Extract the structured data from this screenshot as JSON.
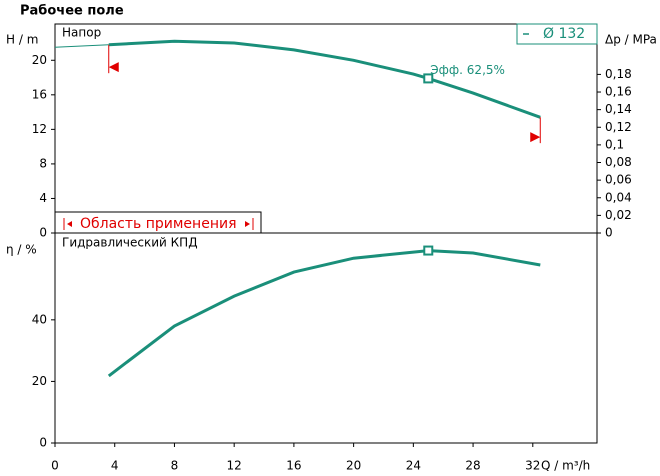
{
  "chart_data": [
    {
      "type": "line",
      "title": "Рабочее поле",
      "panel_label": "Напор",
      "y_label": "H / m",
      "y2_label": "Δp / MPa",
      "xlim": [
        0,
        36.3
      ],
      "ylim": [
        0,
        24.2
      ],
      "yticks": [
        0,
        4,
        8,
        12,
        16,
        20
      ],
      "y2lim": [
        0,
        0.2372
      ],
      "y2ticks": [
        0,
        {
          "value": 0.02,
          "label": "0,02"
        },
        {
          "value": 0.04,
          "label": "0,04"
        },
        {
          "value": 0.06,
          "label": "0,06"
        },
        {
          "value": 0.08,
          "label": "0,08"
        },
        {
          "value": 0.1,
          "label": "0,1"
        },
        {
          "value": 0.12,
          "label": "0,12"
        },
        {
          "value": 0.14,
          "label": "0,14"
        },
        {
          "value": 0.16,
          "label": "0,16"
        },
        {
          "value": 0.18,
          "label": "0,18"
        }
      ],
      "series": [
        {
          "name": "Ø 132",
          "color": "#1a8f7a",
          "x": [
            3.6,
            8,
            12,
            16,
            20,
            24,
            25,
            28,
            32.5
          ],
          "values": [
            21.8,
            22.2,
            22.0,
            21.2,
            20.0,
            18.4,
            17.9,
            16.2,
            13.4
          ]
        }
      ],
      "extension": {
        "color": "#1a8f7a",
        "x": [
          0,
          3.6
        ],
        "values": [
          21.5,
          21.8
        ]
      },
      "annotation": {
        "text": "Эфф.  62,5%",
        "x": 25,
        "y": 17.9
      },
      "limit_markers": {
        "color": "#e00000",
        "x": [
          3.6,
          32.5
        ],
        "values": [
          19.2,
          11.1
        ]
      },
      "range_label": "Область применения"
    },
    {
      "type": "line",
      "panel_label": "Гидравлический КПД",
      "y_label": "η / %",
      "x_label": "Q / m³/h",
      "xlim": [
        0,
        36.3
      ],
      "xticks": [
        0,
        4,
        8,
        12,
        16,
        20,
        24,
        28,
        32
      ],
      "ylim": [
        0,
        68.2
      ],
      "yticks": [
        0,
        20,
        40
      ],
      "series": [
        {
          "name": "КПД",
          "color": "#1a8f7a",
          "x": [
            3.6,
            8,
            12,
            16,
            20,
            25,
            28,
            32.5
          ],
          "values": [
            21.8,
            38,
            47.7,
            55.5,
            60,
            62.5,
            61.7,
            57.8
          ]
        }
      ],
      "marker": {
        "x": 25,
        "y": 62.5
      }
    }
  ]
}
